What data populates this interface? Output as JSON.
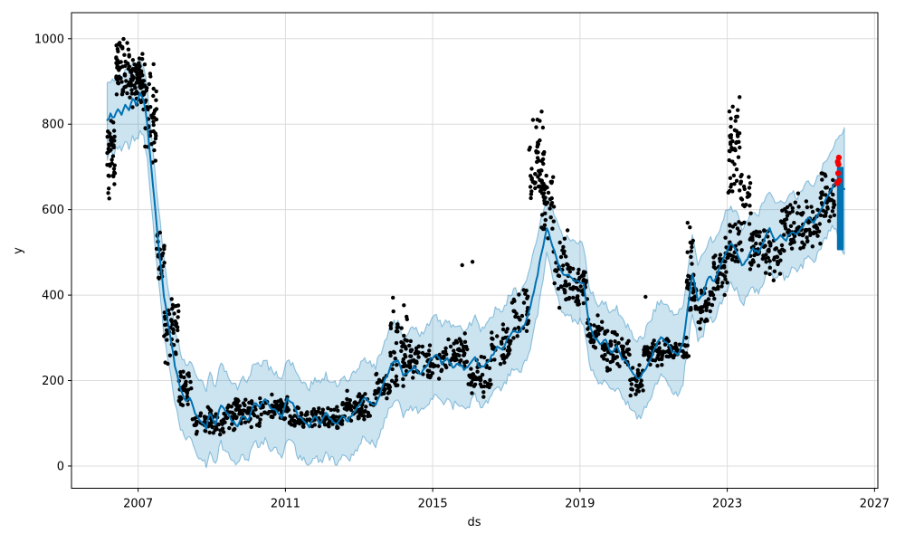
{
  "chart_data": {
    "type": "line",
    "subtype": "prophet-forecast-with-scatter-and-uncertainty-band",
    "title": "",
    "xlabel": "ds",
    "ylabel": "y",
    "xlim": [
      2005.19,
      2027.09
    ],
    "ylim": [
      -52,
      1061
    ],
    "x_ticks": [
      "2007",
      "2011",
      "2015",
      "2019",
      "2023",
      "2027"
    ],
    "x_tick_values": [
      2007,
      2011,
      2015,
      2019,
      2023,
      2027
    ],
    "y_ticks": [
      "0",
      "200",
      "400",
      "600",
      "800",
      "1000"
    ],
    "y_tick_values": [
      0,
      200,
      400,
      600,
      800,
      1000
    ],
    "grid": true,
    "legend": null,
    "colors": {
      "forecast_line": "#0072B2",
      "uncertainty_band": "rgba(0,114,178,0.2)",
      "band_edge": "rgba(0,114,178,0.4)",
      "actuals": "#000000",
      "anomaly": "#f80000",
      "grid": "#dcdcdc",
      "spine": "#000000",
      "background": "#ffffff"
    },
    "forecast": [
      [
        2006.16,
        810,
        722,
        893
      ],
      [
        2006.25,
        822,
        735,
        905
      ],
      [
        2006.35,
        815,
        728,
        898
      ],
      [
        2006.45,
        838,
        750,
        920
      ],
      [
        2006.55,
        822,
        735,
        905
      ],
      [
        2006.65,
        848,
        760,
        930
      ],
      [
        2006.75,
        835,
        748,
        918
      ],
      [
        2006.85,
        858,
        770,
        940
      ],
      [
        2006.95,
        848,
        760,
        930
      ],
      [
        2007.05,
        872,
        785,
        952
      ],
      [
        2007.15,
        858,
        772,
        940
      ],
      [
        2007.25,
        800,
        712,
        885
      ],
      [
        2007.4,
        660,
        572,
        748
      ],
      [
        2007.55,
        520,
        432,
        608
      ],
      [
        2007.7,
        400,
        312,
        488
      ],
      [
        2007.85,
        315,
        225,
        402
      ],
      [
        2008.0,
        235,
        142,
        322
      ],
      [
        2008.15,
        178,
        85,
        265
      ],
      [
        2008.3,
        150,
        58,
        238
      ],
      [
        2008.4,
        162,
        68,
        250
      ],
      [
        2008.55,
        125,
        32,
        215
      ],
      [
        2008.7,
        105,
        15,
        196
      ],
      [
        2008.85,
        90,
        5,
        182
      ],
      [
        2008.95,
        125,
        32,
        215
      ],
      [
        2009.1,
        98,
        10,
        190
      ],
      [
        2009.25,
        145,
        52,
        236
      ],
      [
        2009.4,
        125,
        32,
        215
      ],
      [
        2009.55,
        105,
        15,
        198
      ],
      [
        2009.7,
        92,
        4,
        185
      ],
      [
        2009.85,
        118,
        26,
        210
      ],
      [
        2010.0,
        105,
        14,
        198
      ],
      [
        2010.15,
        150,
        58,
        242
      ],
      [
        2010.3,
        140,
        46,
        232
      ],
      [
        2010.45,
        155,
        62,
        246
      ],
      [
        2010.6,
        135,
        42,
        226
      ],
      [
        2010.75,
        128,
        36,
        220
      ],
      [
        2010.9,
        115,
        22,
        206
      ],
      [
        2011.05,
        158,
        66,
        250
      ],
      [
        2011.2,
        145,
        52,
        236
      ],
      [
        2011.35,
        115,
        24,
        208
      ],
      [
        2011.5,
        108,
        16,
        200
      ],
      [
        2011.65,
        92,
        4,
        185
      ],
      [
        2011.8,
        115,
        22,
        206
      ],
      [
        2011.95,
        100,
        8,
        192
      ],
      [
        2012.1,
        122,
        30,
        214
      ],
      [
        2012.25,
        108,
        16,
        200
      ],
      [
        2012.4,
        96,
        6,
        188
      ],
      [
        2012.55,
        115,
        22,
        206
      ],
      [
        2012.7,
        106,
        14,
        198
      ],
      [
        2012.85,
        125,
        32,
        216
      ],
      [
        2013.0,
        140,
        48,
        232
      ],
      [
        2013.15,
        160,
        68,
        252
      ],
      [
        2013.3,
        150,
        58,
        242
      ],
      [
        2013.45,
        142,
        50,
        234
      ],
      [
        2013.6,
        178,
        86,
        270
      ],
      [
        2013.75,
        210,
        118,
        300
      ],
      [
        2013.9,
        240,
        148,
        330
      ],
      [
        2014.05,
        248,
        156,
        340
      ],
      [
        2014.2,
        210,
        118,
        302
      ],
      [
        2014.35,
        220,
        128,
        312
      ],
      [
        2014.5,
        235,
        142,
        326
      ],
      [
        2014.65,
        215,
        122,
        306
      ],
      [
        2014.8,
        228,
        136,
        320
      ],
      [
        2014.95,
        252,
        160,
        344
      ],
      [
        2015.1,
        262,
        170,
        354
      ],
      [
        2015.25,
        240,
        148,
        332
      ],
      [
        2015.4,
        250,
        158,
        342
      ],
      [
        2015.55,
        232,
        140,
        324
      ],
      [
        2015.7,
        242,
        150,
        334
      ],
      [
        2015.85,
        228,
        136,
        320
      ],
      [
        2016.0,
        236,
        144,
        328
      ],
      [
        2016.15,
        254,
        162,
        346
      ],
      [
        2016.3,
        228,
        136,
        320
      ],
      [
        2016.45,
        238,
        146,
        330
      ],
      [
        2016.6,
        256,
        164,
        348
      ],
      [
        2016.75,
        280,
        188,
        372
      ],
      [
        2016.9,
        270,
        178,
        362
      ],
      [
        2017.05,
        300,
        208,
        392
      ],
      [
        2017.2,
        320,
        228,
        412
      ],
      [
        2017.35,
        310,
        218,
        402
      ],
      [
        2017.5,
        332,
        240,
        424
      ],
      [
        2017.65,
        372,
        280,
        462
      ],
      [
        2017.8,
        428,
        336,
        518
      ],
      [
        2017.95,
        495,
        405,
        585
      ],
      [
        2018.1,
        558,
        492,
        636
      ],
      [
        2018.25,
        518,
        448,
        600
      ],
      [
        2018.4,
        478,
        395,
        562
      ],
      [
        2018.55,
        445,
        352,
        535
      ],
      [
        2018.7,
        448,
        355,
        538
      ],
      [
        2018.85,
        430,
        338,
        520
      ],
      [
        2019.0,
        430,
        338,
        520
      ],
      [
        2019.1,
        428,
        336,
        518
      ],
      [
        2019.25,
        330,
        238,
        420
      ],
      [
        2019.4,
        300,
        208,
        390
      ],
      [
        2019.55,
        285,
        192,
        375
      ],
      [
        2019.7,
        296,
        204,
        386
      ],
      [
        2019.85,
        265,
        172,
        355
      ],
      [
        2020.0,
        280,
        188,
        370
      ],
      [
        2020.15,
        252,
        160,
        342
      ],
      [
        2020.3,
        238,
        146,
        328
      ],
      [
        2020.45,
        215,
        122,
        305
      ],
      [
        2020.6,
        205,
        112,
        295
      ],
      [
        2020.75,
        222,
        130,
        312
      ],
      [
        2020.9,
        245,
        152,
        335
      ],
      [
        2021.05,
        280,
        188,
        370
      ],
      [
        2021.2,
        300,
        208,
        390
      ],
      [
        2021.35,
        288,
        196,
        378
      ],
      [
        2021.5,
        270,
        178,
        360
      ],
      [
        2021.65,
        260,
        168,
        350
      ],
      [
        2021.8,
        288,
        196,
        378
      ],
      [
        2021.95,
        385,
        295,
        472
      ],
      [
        2022.05,
        450,
        360,
        538
      ],
      [
        2022.2,
        388,
        296,
        478
      ],
      [
        2022.35,
        402,
        310,
        492
      ],
      [
        2022.5,
        445,
        352,
        535
      ],
      [
        2022.65,
        432,
        340,
        522
      ],
      [
        2022.8,
        468,
        376,
        558
      ],
      [
        2022.95,
        500,
        408,
        590
      ],
      [
        2023.1,
        520,
        428,
        610
      ],
      [
        2023.25,
        502,
        410,
        592
      ],
      [
        2023.4,
        470,
        378,
        560
      ],
      [
        2023.55,
        486,
        394,
        576
      ],
      [
        2023.7,
        508,
        416,
        598
      ],
      [
        2023.85,
        498,
        406,
        588
      ],
      [
        2024.0,
        528,
        436,
        618
      ],
      [
        2024.15,
        558,
        466,
        648
      ],
      [
        2024.3,
        525,
        432,
        615
      ],
      [
        2024.45,
        540,
        448,
        630
      ],
      [
        2024.6,
        530,
        438,
        620
      ],
      [
        2024.75,
        550,
        458,
        640
      ],
      [
        2024.9,
        542,
        450,
        632
      ],
      [
        2025.05,
        562,
        470,
        652
      ],
      [
        2025.2,
        582,
        490,
        672
      ],
      [
        2025.35,
        570,
        478,
        660
      ],
      [
        2025.5,
        595,
        502,
        685
      ],
      [
        2025.65,
        618,
        526,
        708
      ],
      [
        2025.8,
        645,
        552,
        735
      ],
      [
        2025.95,
        668,
        560,
        760
      ],
      [
        2026.1,
        655,
        505,
        775
      ],
      [
        2026.18,
        648,
        495,
        792
      ]
    ],
    "actual_clusters": [
      [
        2006.16,
        2006.38,
        600,
        838,
        40
      ],
      [
        2006.4,
        2006.76,
        845,
        1010,
        55
      ],
      [
        2006.76,
        2007.18,
        832,
        968,
        80
      ],
      [
        2007.18,
        2007.5,
        690,
        958,
        45
      ],
      [
        2007.5,
        2007.72,
        420,
        575,
        25
      ],
      [
        2007.7,
        2008.1,
        235,
        405,
        45
      ],
      [
        2008.08,
        2008.45,
        130,
        235,
        35
      ],
      [
        2008.45,
        2009.4,
        68,
        140,
        70
      ],
      [
        2009.4,
        2010.3,
        80,
        168,
        70
      ],
      [
        2010.3,
        2011.1,
        102,
        172,
        65
      ],
      [
        2011.1,
        2012.55,
        85,
        140,
        110
      ],
      [
        2012.55,
        2013.4,
        102,
        182,
        70
      ],
      [
        2013.4,
        2013.85,
        138,
        225,
        35
      ],
      [
        2013.85,
        2014.35,
        178,
        385,
        50
      ],
      [
        2014.35,
        2015.3,
        195,
        302,
        70
      ],
      [
        2015.3,
        2015.95,
        212,
        312,
        50
      ],
      [
        2015.95,
        2016.6,
        150,
        268,
        50
      ],
      [
        2016.6,
        2017.1,
        228,
        335,
        40
      ],
      [
        2017.1,
        2017.62,
        275,
        435,
        35
      ],
      [
        2017.62,
        2018.05,
        560,
        832,
        60
      ],
      [
        2017.95,
        2018.3,
        520,
        700,
        35
      ],
      [
        2018.28,
        2018.75,
        360,
        560,
        45
      ],
      [
        2018.75,
        2019.2,
        368,
        470,
        40
      ],
      [
        2019.2,
        2019.6,
        268,
        362,
        35
      ],
      [
        2019.6,
        2020.0,
        222,
        332,
        40
      ],
      [
        2020.0,
        2020.35,
        228,
        312,
        30
      ],
      [
        2020.35,
        2020.72,
        152,
        238,
        35
      ],
      [
        2020.72,
        2021.3,
        228,
        302,
        50
      ],
      [
        2021.3,
        2021.95,
        242,
        308,
        50
      ],
      [
        2021.9,
        2022.15,
        302,
        578,
        40
      ],
      [
        2022.15,
        2022.62,
        308,
        422,
        35
      ],
      [
        2022.6,
        2023.0,
        382,
        516,
        40
      ],
      [
        2022.95,
        2023.4,
        468,
        582,
        35
      ],
      [
        2023.05,
        2023.35,
        618,
        876,
        45
      ],
      [
        2023.35,
        2023.65,
        558,
        706,
        22
      ],
      [
        2023.6,
        2023.95,
        438,
        582,
        32
      ],
      [
        2023.95,
        2024.45,
        428,
        562,
        40
      ],
      [
        2024.45,
        2024.95,
        488,
        640,
        45
      ],
      [
        2024.95,
        2025.55,
        498,
        622,
        50
      ],
      [
        2025.5,
        2025.92,
        540,
        700,
        45
      ]
    ],
    "actual_outliers": [
      [
        2013.92,
        394
      ],
      [
        2016.08,
        478
      ],
      [
        2015.8,
        470
      ],
      [
        2020.78,
        396
      ],
      [
        2023.03,
        640
      ]
    ],
    "anomalies": [
      [
        2025.99,
        662
      ],
      [
        2026.01,
        685
      ],
      [
        2026.02,
        706
      ],
      [
        2026.03,
        722
      ],
      [
        2026.0,
        712
      ],
      [
        2026.04,
        668
      ]
    ],
    "future_bar": {
      "t0": 2025.98,
      "t1": 2026.16,
      "v0": 505,
      "v1": 700
    }
  }
}
